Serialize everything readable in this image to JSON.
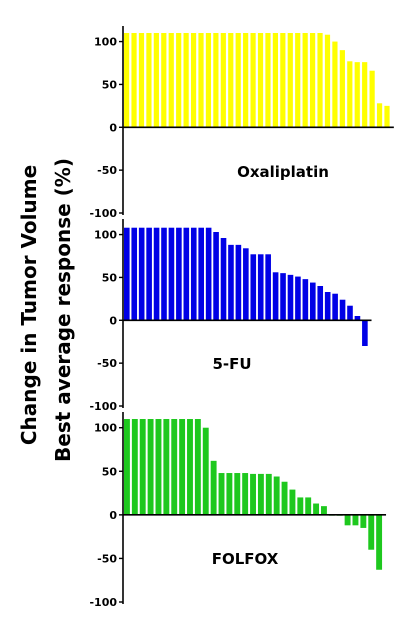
{
  "chart_data": {
    "type": "bar",
    "ylabel_line1": "Change in Tumor Volume",
    "ylabel_line2": "Best average response (%)",
    "panels": [
      {
        "label": "Oxaliplatin",
        "color": "#FFFF00",
        "ylim": [
          -100,
          110
        ],
        "tick_labels": [
          "100",
          "50",
          "0",
          "-50",
          "-100"
        ],
        "values": [
          110,
          110,
          110,
          110,
          110,
          110,
          110,
          110,
          110,
          110,
          110,
          110,
          110,
          110,
          110,
          110,
          110,
          110,
          110,
          110,
          110,
          110,
          110,
          110,
          110,
          110,
          110,
          108,
          100,
          90,
          77,
          76,
          76,
          66,
          28,
          25
        ]
      },
      {
        "label": "5-FU",
        "color": "#0000E6",
        "ylim": [
          -100,
          110
        ],
        "tick_labels": [
          "100",
          "50",
          "0",
          "-50",
          "-100"
        ],
        "values": [
          108,
          108,
          108,
          108,
          108,
          108,
          108,
          108,
          108,
          108,
          108,
          108,
          103,
          96,
          88,
          88,
          84,
          77,
          77,
          77,
          56,
          55,
          53,
          51,
          48,
          44,
          40,
          33,
          31,
          24,
          17,
          5,
          -30
        ]
      },
      {
        "label": "FOLFOX",
        "color": "#1EC81E",
        "ylim": [
          -100,
          110
        ],
        "tick_labels": [
          "100",
          "50",
          "0",
          "-50",
          "-100"
        ],
        "values": [
          110,
          110,
          110,
          110,
          110,
          110,
          110,
          110,
          110,
          110,
          100,
          62,
          48,
          48,
          48,
          48,
          47,
          47,
          47,
          44,
          38,
          29,
          20,
          20,
          13,
          10,
          0,
          -1,
          -12,
          -12,
          -15,
          -40,
          -63
        ]
      }
    ]
  }
}
